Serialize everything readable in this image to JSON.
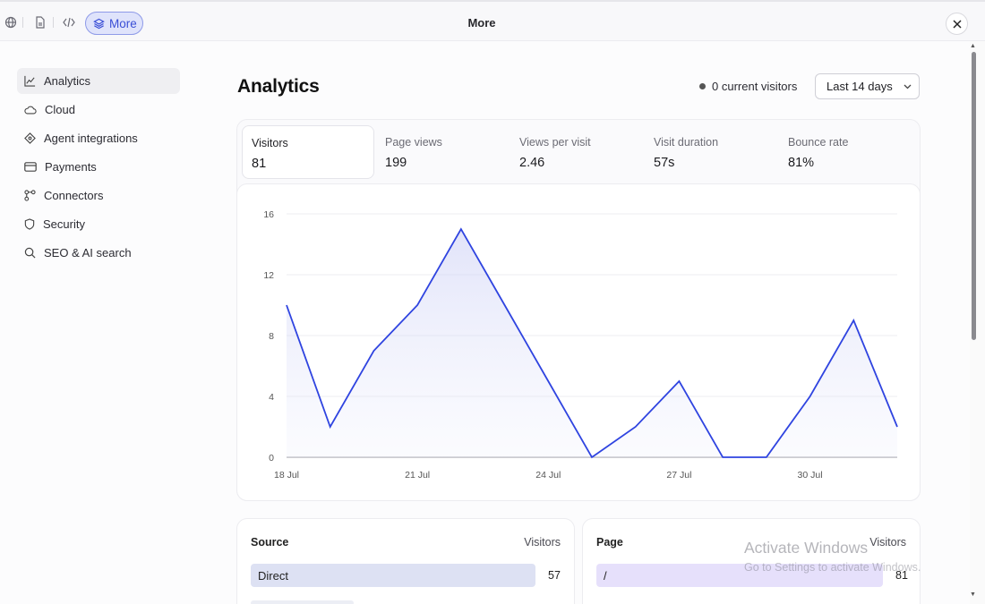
{
  "window": {
    "title": "More",
    "more_label": "More"
  },
  "toolbar": {
    "icons": [
      "globe-icon",
      "file-icon",
      "code-icon",
      "layers-icon"
    ]
  },
  "sidebar": {
    "items": [
      {
        "label": "Analytics",
        "icon": "chart-line-icon",
        "active": true
      },
      {
        "label": "Cloud",
        "icon": "cloud-icon"
      },
      {
        "label": "Agent integrations",
        "icon": "diamond-icon"
      },
      {
        "label": "Payments",
        "icon": "credit-card-icon"
      },
      {
        "label": "Connectors",
        "icon": "nodes-icon"
      },
      {
        "label": "Security",
        "icon": "shield-icon"
      },
      {
        "label": "SEO & AI search",
        "icon": "search-icon"
      }
    ]
  },
  "main": {
    "title": "Analytics",
    "current_visitors": "0 current visitors",
    "range": "Last 14 days",
    "metrics": [
      {
        "label": "Visitors",
        "value": "81",
        "active": true
      },
      {
        "label": "Page views",
        "value": "199"
      },
      {
        "label": "Views per visit",
        "value": "2.46"
      },
      {
        "label": "Visit duration",
        "value": "57s"
      },
      {
        "label": "Bounce rate",
        "value": "81%"
      }
    ]
  },
  "chart_data": {
    "type": "area",
    "x": [
      "18 Jul",
      "19 Jul",
      "20 Jul",
      "21 Jul",
      "22 Jul",
      "23 Jul",
      "24 Jul",
      "25 Jul",
      "26 Jul",
      "27 Jul",
      "28 Jul",
      "29 Jul",
      "30 Jul",
      "31 Jul",
      "1 Aug"
    ],
    "series": [
      {
        "values": [
          10,
          2,
          7,
          10,
          15,
          10,
          5,
          0,
          2,
          5,
          0,
          0,
          4,
          9,
          2
        ]
      }
    ],
    "x_tick_labels": [
      "18 Jul",
      "21 Jul",
      "24 Jul",
      "27 Jul",
      "30 Jul"
    ],
    "y_ticks": [
      0,
      4,
      8,
      12,
      16
    ],
    "ylim": [
      0,
      16
    ],
    "grid": true,
    "line_color": "#2f44e0"
  },
  "source_panel": {
    "title": "Source",
    "column": "Visitors",
    "rows": [
      {
        "label": "Direct",
        "value": "57",
        "fraction": 1.0
      }
    ],
    "bar_color": "#dde1f3"
  },
  "page_panel": {
    "title": "Page",
    "column": "Visitors",
    "rows": [
      {
        "label": "/",
        "value": "81",
        "fraction": 1.0
      }
    ],
    "bar_color": "#e6e0fb"
  },
  "watermark": {
    "line1": "Activate Windows",
    "line2": "Go to Settings to activate Windows."
  }
}
